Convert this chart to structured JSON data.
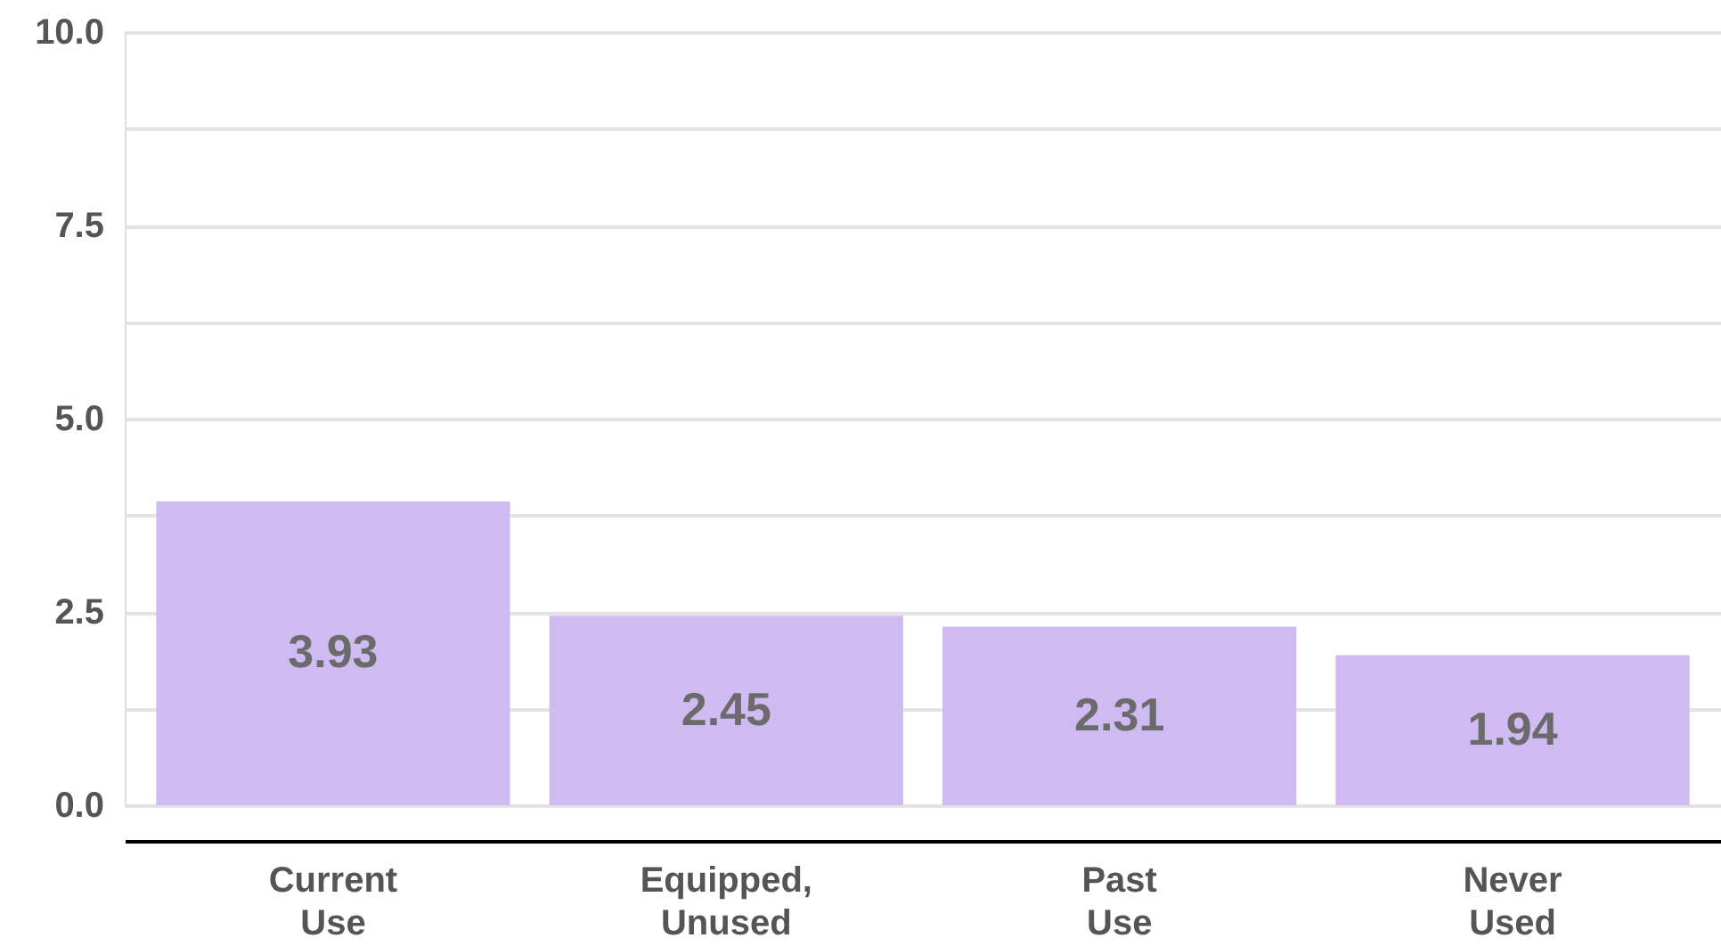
{
  "chart_data": {
    "type": "bar",
    "categories": [
      "Current Use",
      "Equipped, Unused",
      "Past Use",
      "Never Used"
    ],
    "values": [
      3.93,
      2.45,
      2.31,
      1.94
    ],
    "color": "#cfbaf2",
    "data_labels": true,
    "ylim": [
      0,
      10
    ],
    "yticks": [
      {
        "value": 0,
        "label": "0.0"
      },
      {
        "value": 1.25,
        "label": null
      },
      {
        "value": 2.5,
        "label": "2.5"
      },
      {
        "value": 3.75,
        "label": null
      },
      {
        "value": 5,
        "label": "5.0"
      },
      {
        "value": 6.25,
        "label": null
      },
      {
        "value": 7.5,
        "label": "7.5"
      },
      {
        "value": 8.75,
        "label": null
      },
      {
        "value": 10,
        "label": "10.0"
      }
    ],
    "grid": "y"
  }
}
